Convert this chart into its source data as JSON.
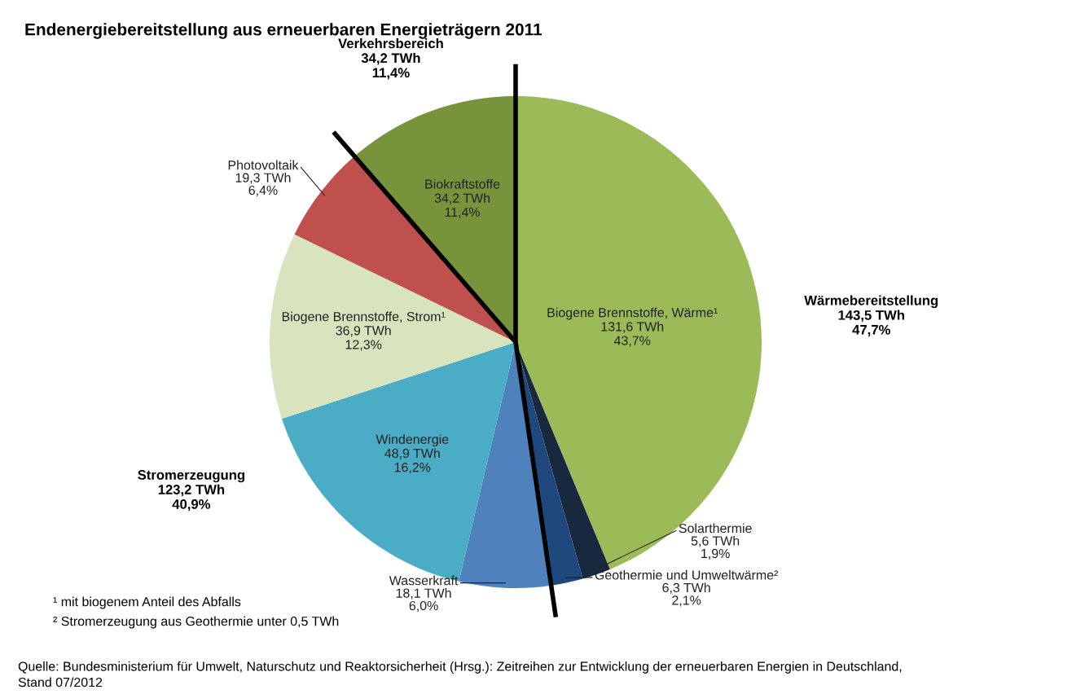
{
  "chart_data": {
    "type": "pie",
    "title": "Endenergiebereitstellung aus erneuerbaren Energieträgern 2011",
    "categories": [
      "Biogene Brennstoffe, Wärme¹",
      "Solarthermie",
      "Geothermie und Umweltwärme²",
      "Wasserkraft",
      "Windenergie",
      "Biogene Brennstoffe, Strom¹",
      "Photovoltaik",
      "Biokraftstoffe"
    ],
    "values": [
      131.6,
      5.6,
      6.3,
      18.1,
      48.9,
      36.9,
      19.3,
      34.2
    ],
    "colors": [
      "#9bbb59",
      "#17283f",
      "#1f497d",
      "#4f81bd",
      "#4bacc6",
      "#d7e4bd",
      "#c0504d",
      "#77933c"
    ],
    "value_labels": [
      "131,6 TWh\n43,7%",
      "5,6 TWh\n1,9%",
      "6,3 TWh\n2,1%",
      "18,1 TWh\n6,0%",
      "48,9 TWh\n16,2%",
      "36,9 TWh\n12,3%",
      "19,3 TWh\n6,4%",
      "34,2 TWh\n11,4%"
    ],
    "annotations": [
      {
        "text": "Wärmebereitstellung\n143,5 TWh\n47,7%",
        "x": "Biogene Brennstoffe, Wärme¹"
      },
      {
        "text": "Stromerzeugung\n123,2 TWh\n40,9%",
        "x": "Wasserkraft"
      },
      {
        "text": "Verkehrsbereich\n34,2 TWh\n11,4%",
        "x": "Biokraftstoffe"
      },
      "¹ mit biogenem Anteil des Abfalls",
      "² Stromerzeugung aus Geothermie unter 0,5 TWh",
      "Quelle: Bundesministerium für Umwelt, Naturschutz und Reaktorsicherheit (Hrsg.): Zeitreihen zur Entwicklung der erneuerbaren Energien in Deutschland,\nStand 07/2012"
    ]
  }
}
